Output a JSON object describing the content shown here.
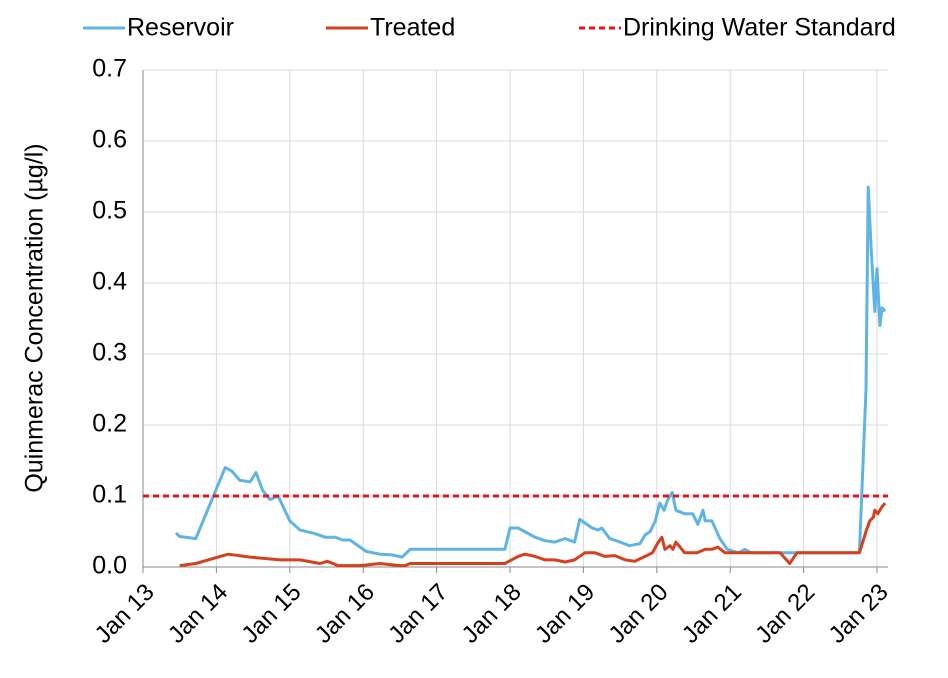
{
  "chart_data": {
    "type": "line",
    "ylabel": "Quinmerac Concentration (µg/l)",
    "xlim": [
      2013,
      2023.15
    ],
    "xticks": [
      {
        "value": 2013,
        "label": "Jan 13"
      },
      {
        "value": 2014,
        "label": "Jan 14"
      },
      {
        "value": 2015,
        "label": "Jan 15"
      },
      {
        "value": 2016,
        "label": "Jan 16"
      },
      {
        "value": 2017,
        "label": "Jan 17"
      },
      {
        "value": 2018,
        "label": "Jan 18"
      },
      {
        "value": 2019,
        "label": "Jan 19"
      },
      {
        "value": 2020,
        "label": "Jan 20"
      },
      {
        "value": 2021,
        "label": "Jan 21"
      },
      {
        "value": 2022,
        "label": "Jan 22"
      },
      {
        "value": 2023,
        "label": "Jan 23"
      }
    ],
    "ylim": [
      0,
      0.7
    ],
    "yticks": [
      {
        "value": 0,
        "label": "0.0"
      },
      0.1,
      0.2,
      0.3,
      0.4,
      0.5,
      0.6,
      0.7
    ],
    "grid": true,
    "legend": "top",
    "series": [
      {
        "name": "Reservoir",
        "color": "#5eb4e3",
        "x": [
          2013.45,
          2013.5,
          2013.72,
          2014.12,
          2014.21,
          2014.32,
          2014.46,
          2014.54,
          2014.63,
          2014.73,
          2014.84,
          2015.0,
          2015.14,
          2015.34,
          2015.48,
          2015.62,
          2015.72,
          2015.82,
          2016.04,
          2016.23,
          2016.39,
          2016.53,
          2016.64,
          2017.05,
          2017.93,
          2018.0,
          2018.11,
          2018.34,
          2018.48,
          2018.61,
          2018.75,
          2018.88,
          2018.95,
          2019.12,
          2019.2,
          2019.25,
          2019.36,
          2019.5,
          2019.63,
          2019.77,
          2019.84,
          2019.91,
          2019.98,
          2020.04,
          2020.1,
          2020.15,
          2020.21,
          2020.26,
          2020.38,
          2020.49,
          2020.56,
          2020.63,
          2020.66,
          2020.75,
          2020.86,
          2020.96,
          2021.11,
          2021.2,
          2021.29,
          2022.76,
          2022.85,
          2022.88,
          2022.92,
          2022.97,
          2023.0,
          2023.04,
          2023.07,
          2023.11
        ],
        "values": [
          0.048,
          0.043,
          0.04,
          0.14,
          0.135,
          0.122,
          0.12,
          0.133,
          0.108,
          0.095,
          0.1,
          0.065,
          0.052,
          0.047,
          0.042,
          0.042,
          0.038,
          0.038,
          0.022,
          0.018,
          0.017,
          0.014,
          0.025,
          0.025,
          0.025,
          0.055,
          0.055,
          0.042,
          0.037,
          0.035,
          0.04,
          0.035,
          0.067,
          0.055,
          0.052,
          0.055,
          0.04,
          0.035,
          0.03,
          0.033,
          0.045,
          0.05,
          0.065,
          0.09,
          0.08,
          0.095,
          0.105,
          0.08,
          0.075,
          0.075,
          0.06,
          0.08,
          0.065,
          0.065,
          0.04,
          0.025,
          0.02,
          0.025,
          0.02,
          0.02,
          0.25,
          0.535,
          0.45,
          0.36,
          0.42,
          0.34,
          0.365,
          0.36
        ]
      },
      {
        "name": "Treated",
        "color": "#d4411e",
        "x": [
          2013.5,
          2013.72,
          2014.16,
          2014.46,
          2014.87,
          2015.14,
          2015.41,
          2015.51,
          2015.66,
          2015.96,
          2016.23,
          2016.5,
          2016.57,
          2016.64,
          2017.93,
          2018.11,
          2018.2,
          2018.34,
          2018.48,
          2018.61,
          2018.75,
          2018.88,
          2019.02,
          2019.16,
          2019.29,
          2019.43,
          2019.57,
          2019.7,
          2019.84,
          2019.94,
          2020.02,
          2020.07,
          2020.11,
          2020.18,
          2020.22,
          2020.26,
          2020.38,
          2020.55,
          2020.66,
          2020.75,
          2020.83,
          2020.93,
          2021.68,
          2021.81,
          2021.91,
          2022.76,
          2022.85,
          2022.9,
          2022.95,
          2022.97,
          2023.01,
          2023.07,
          2023.11
        ],
        "values": [
          0.002,
          0.005,
          0.018,
          0.014,
          0.01,
          0.01,
          0.005,
          0.008,
          0.002,
          0.002,
          0.005,
          0.002,
          0.002,
          0.005,
          0.005,
          0.015,
          0.018,
          0.015,
          0.01,
          0.01,
          0.007,
          0.01,
          0.02,
          0.02,
          0.015,
          0.016,
          0.01,
          0.008,
          0.015,
          0.02,
          0.035,
          0.042,
          0.025,
          0.03,
          0.025,
          0.035,
          0.02,
          0.02,
          0.025,
          0.025,
          0.028,
          0.02,
          0.02,
          0.005,
          0.02,
          0.02,
          0.05,
          0.065,
          0.07,
          0.08,
          0.075,
          0.085,
          0.09
        ]
      }
    ],
    "reference_line": {
      "name": "Drinking Water Standard",
      "value": 0.1,
      "color": "#e8141b",
      "dashed": true
    }
  }
}
